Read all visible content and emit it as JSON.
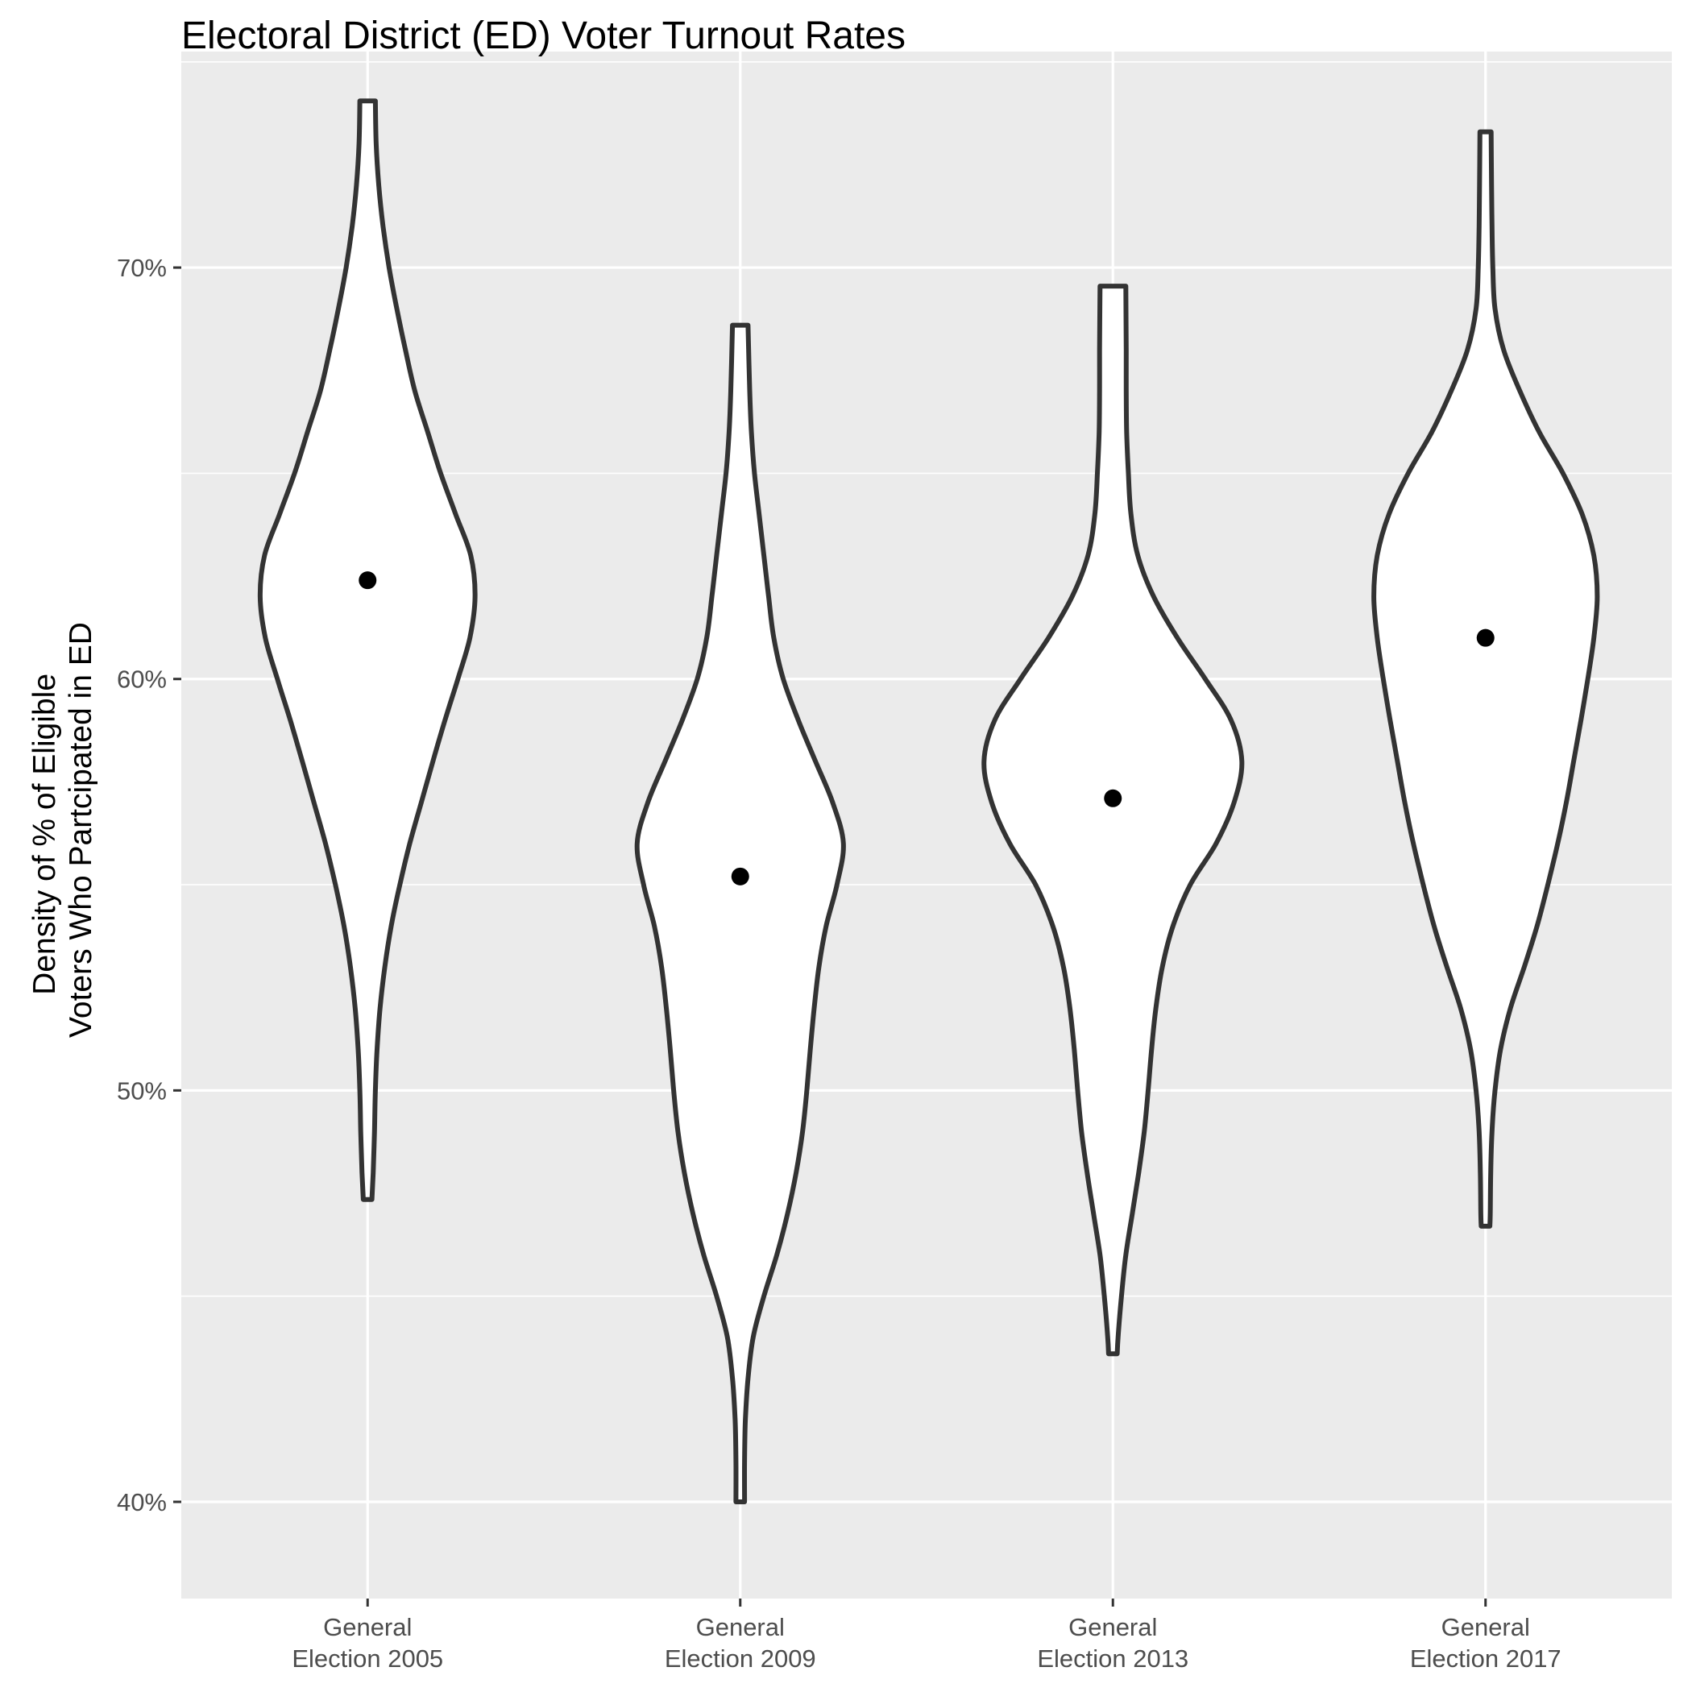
{
  "chart_data": {
    "type": "violin",
    "title": "Electoral District (ED) Voter Turnout Rates",
    "xlabel": "",
    "ylabel_lines": [
      "Density of % of Eligible",
      "Voters Who Partcipated in ED"
    ],
    "ylim": [
      0.3765,
      0.7525
    ],
    "y_ticks": [
      0.4,
      0.5,
      0.6,
      0.7
    ],
    "y_tick_labels": [
      "40%",
      "50%",
      "60%",
      "70%"
    ],
    "grid": true,
    "categories": [
      {
        "label_lines": [
          "General",
          "Election 2005"
        ]
      },
      {
        "label_lines": [
          "General",
          "Election 2009"
        ]
      },
      {
        "label_lines": [
          "General",
          "Election 2013"
        ]
      },
      {
        "label_lines": [
          "General",
          "Election 2017"
        ]
      }
    ],
    "series": [
      {
        "category": "General Election 2005",
        "mean": 0.624,
        "profile": [
          [
            0.4735,
            0.01
          ],
          [
            0.48,
            0.013
          ],
          [
            0.49,
            0.016
          ],
          [
            0.5,
            0.018
          ],
          [
            0.51,
            0.022
          ],
          [
            0.52,
            0.029
          ],
          [
            0.53,
            0.04
          ],
          [
            0.54,
            0.055
          ],
          [
            0.55,
            0.075
          ],
          [
            0.56,
            0.098
          ],
          [
            0.57,
            0.125
          ],
          [
            0.58,
            0.152
          ],
          [
            0.59,
            0.18
          ],
          [
            0.6,
            0.21
          ],
          [
            0.61,
            0.238
          ],
          [
            0.62,
            0.25
          ],
          [
            0.63,
            0.24
          ],
          [
            0.64,
            0.205
          ],
          [
            0.65,
            0.17
          ],
          [
            0.66,
            0.14
          ],
          [
            0.67,
            0.11
          ],
          [
            0.68,
            0.088
          ],
          [
            0.69,
            0.068
          ],
          [
            0.7,
            0.05
          ],
          [
            0.71,
            0.036
          ],
          [
            0.72,
            0.026
          ],
          [
            0.73,
            0.02
          ],
          [
            0.7405,
            0.018
          ]
        ]
      },
      {
        "category": "General Election 2009",
        "mean": 0.552,
        "profile": [
          [
            0.4,
            0.01
          ],
          [
            0.41,
            0.01
          ],
          [
            0.42,
            0.012
          ],
          [
            0.43,
            0.018
          ],
          [
            0.44,
            0.03
          ],
          [
            0.45,
            0.055
          ],
          [
            0.46,
            0.085
          ],
          [
            0.47,
            0.11
          ],
          [
            0.48,
            0.13
          ],
          [
            0.49,
            0.145
          ],
          [
            0.5,
            0.155
          ],
          [
            0.51,
            0.163
          ],
          [
            0.52,
            0.172
          ],
          [
            0.53,
            0.183
          ],
          [
            0.54,
            0.2
          ],
          [
            0.55,
            0.225
          ],
          [
            0.56,
            0.24
          ],
          [
            0.57,
            0.215
          ],
          [
            0.58,
            0.175
          ],
          [
            0.59,
            0.135
          ],
          [
            0.6,
            0.1
          ],
          [
            0.61,
            0.078
          ],
          [
            0.62,
            0.066
          ],
          [
            0.63,
            0.055
          ],
          [
            0.64,
            0.044
          ],
          [
            0.65,
            0.033
          ],
          [
            0.66,
            0.026
          ],
          [
            0.67,
            0.022
          ],
          [
            0.686,
            0.018
          ]
        ]
      },
      {
        "category": "General Election 2013",
        "mean": 0.571,
        "profile": [
          [
            0.436,
            0.01
          ],
          [
            0.44,
            0.012
          ],
          [
            0.45,
            0.02
          ],
          [
            0.46,
            0.03
          ],
          [
            0.47,
            0.045
          ],
          [
            0.48,
            0.06
          ],
          [
            0.49,
            0.073
          ],
          [
            0.5,
            0.082
          ],
          [
            0.51,
            0.09
          ],
          [
            0.52,
            0.1
          ],
          [
            0.53,
            0.115
          ],
          [
            0.54,
            0.14
          ],
          [
            0.55,
            0.18
          ],
          [
            0.56,
            0.24
          ],
          [
            0.57,
            0.282
          ],
          [
            0.58,
            0.3
          ],
          [
            0.59,
            0.275
          ],
          [
            0.6,
            0.215
          ],
          [
            0.61,
            0.15
          ],
          [
            0.62,
            0.095
          ],
          [
            0.63,
            0.058
          ],
          [
            0.64,
            0.042
          ],
          [
            0.65,
            0.036
          ],
          [
            0.66,
            0.032
          ],
          [
            0.67,
            0.031
          ],
          [
            0.68,
            0.031
          ],
          [
            0.6955,
            0.03
          ]
        ]
      },
      {
        "category": "General Election 2017",
        "mean": 0.61,
        "profile": [
          [
            0.467,
            0.01
          ],
          [
            0.47,
            0.011
          ],
          [
            0.48,
            0.012
          ],
          [
            0.49,
            0.015
          ],
          [
            0.5,
            0.022
          ],
          [
            0.51,
            0.035
          ],
          [
            0.52,
            0.058
          ],
          [
            0.53,
            0.09
          ],
          [
            0.54,
            0.12
          ],
          [
            0.55,
            0.145
          ],
          [
            0.56,
            0.168
          ],
          [
            0.57,
            0.188
          ],
          [
            0.58,
            0.205
          ],
          [
            0.59,
            0.222
          ],
          [
            0.6,
            0.238
          ],
          [
            0.61,
            0.252
          ],
          [
            0.62,
            0.26
          ],
          [
            0.63,
            0.252
          ],
          [
            0.64,
            0.225
          ],
          [
            0.65,
            0.18
          ],
          [
            0.66,
            0.125
          ],
          [
            0.67,
            0.08
          ],
          [
            0.68,
            0.042
          ],
          [
            0.69,
            0.022
          ],
          [
            0.7,
            0.017
          ],
          [
            0.71,
            0.015
          ],
          [
            0.72,
            0.014
          ],
          [
            0.733,
            0.013
          ]
        ]
      }
    ]
  }
}
